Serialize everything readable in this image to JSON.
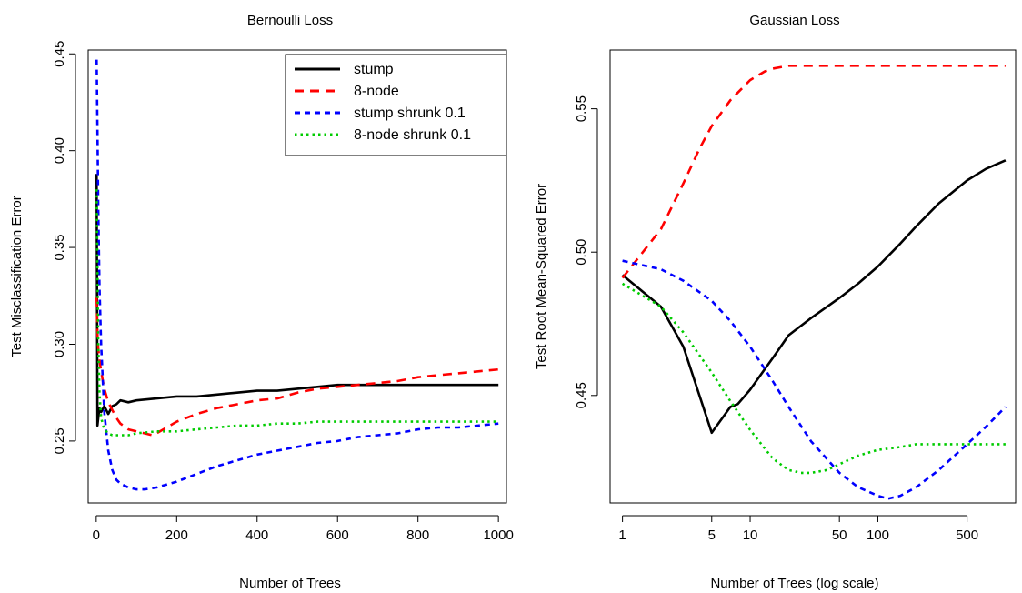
{
  "chart_data": [
    {
      "type": "line",
      "title": "Bernoulli Loss",
      "xlabel": "Number of Trees",
      "ylabel": "Test Misclassification Error",
      "xlim": [
        -20,
        1020
      ],
      "ylim": [
        0.218,
        0.452
      ],
      "xticks": [
        0,
        200,
        400,
        600,
        800,
        1000
      ],
      "yticks": [
        0.25,
        0.3,
        0.35,
        0.4,
        0.45
      ],
      "xtick_labels": [
        "0",
        "200",
        "400",
        "600",
        "800",
        "1000"
      ],
      "ytick_labels": [
        "0.25",
        "0.30",
        "0.35",
        "0.40",
        "0.45"
      ],
      "legend_position": "top-right",
      "series": [
        {
          "name": "stump",
          "color": "#000000",
          "dash": "solid",
          "width": 2.6,
          "x": [
            1,
            3,
            5,
            8,
            12,
            20,
            30,
            40,
            50,
            60,
            80,
            100,
            150,
            200,
            250,
            300,
            350,
            400,
            450,
            500,
            550,
            600,
            650,
            700,
            750,
            800,
            850,
            900,
            950,
            1000
          ],
          "y": [
            0.388,
            0.258,
            0.262,
            0.267,
            0.265,
            0.268,
            0.264,
            0.268,
            0.269,
            0.271,
            0.27,
            0.271,
            0.272,
            0.273,
            0.273,
            0.274,
            0.275,
            0.276,
            0.276,
            0.277,
            0.278,
            0.279,
            0.279,
            0.279,
            0.279,
            0.279,
            0.279,
            0.279,
            0.279,
            0.279
          ]
        },
        {
          "name": "8-node",
          "color": "#ff0000",
          "dash": "10 7",
          "width": 2.6,
          "x": [
            1,
            3,
            5,
            8,
            12,
            20,
            30,
            40,
            50,
            60,
            80,
            100,
            120,
            140,
            150,
            200,
            250,
            300,
            350,
            400,
            450,
            500,
            550,
            600,
            650,
            700,
            750,
            800,
            850,
            900,
            950,
            1000
          ],
          "y": [
            0.324,
            0.305,
            0.298,
            0.292,
            0.286,
            0.277,
            0.27,
            0.266,
            0.262,
            0.259,
            0.256,
            0.255,
            0.254,
            0.253,
            0.254,
            0.26,
            0.264,
            0.267,
            0.269,
            0.271,
            0.272,
            0.275,
            0.277,
            0.278,
            0.279,
            0.28,
            0.281,
            0.283,
            0.284,
            0.285,
            0.286,
            0.287
          ]
        },
        {
          "name": "stump shrunk 0.1",
          "color": "#0000ff",
          "dash": "6 5",
          "width": 2.6,
          "x": [
            1,
            3,
            5,
            8,
            12,
            20,
            30,
            40,
            50,
            60,
            80,
            100,
            120,
            150,
            200,
            250,
            300,
            350,
            400,
            450,
            500,
            550,
            600,
            650,
            700,
            750,
            800,
            850,
            900,
            950,
            1000
          ],
          "y": [
            0.447,
            0.41,
            0.37,
            0.33,
            0.3,
            0.265,
            0.245,
            0.235,
            0.23,
            0.228,
            0.226,
            0.225,
            0.225,
            0.226,
            0.229,
            0.233,
            0.237,
            0.24,
            0.243,
            0.245,
            0.247,
            0.249,
            0.25,
            0.252,
            0.253,
            0.254,
            0.256,
            0.257,
            0.257,
            0.258,
            0.259
          ]
        },
        {
          "name": "8-node shrunk 0.1",
          "color": "#00cc00",
          "dash": "2.5 4",
          "width": 2.6,
          "x": [
            1,
            3,
            5,
            8,
            12,
            20,
            30,
            40,
            50,
            60,
            80,
            100,
            150,
            200,
            250,
            300,
            350,
            400,
            450,
            500,
            550,
            600,
            650,
            700,
            750,
            800,
            850,
            900,
            950,
            1000
          ],
          "y": [
            0.38,
            0.34,
            0.3,
            0.275,
            0.262,
            0.256,
            0.254,
            0.253,
            0.253,
            0.253,
            0.253,
            0.254,
            0.255,
            0.255,
            0.256,
            0.257,
            0.258,
            0.258,
            0.259,
            0.259,
            0.26,
            0.26,
            0.26,
            0.26,
            0.26,
            0.26,
            0.26,
            0.26,
            0.26,
            0.26
          ]
        }
      ]
    },
    {
      "type": "line",
      "title": "Gaussian Loss",
      "xlabel": "Number of Trees (log scale)",
      "ylabel": "Test Root Mean-Squared Error",
      "xscale": "log",
      "xlim": [
        0.8,
        1200
      ],
      "ylim": [
        0.4125,
        0.5705
      ],
      "xticks": [
        1,
        5,
        10,
        50,
        100,
        500
      ],
      "yticks": [
        0.45,
        0.5,
        0.55
      ],
      "xtick_labels": [
        "1",
        "5",
        "10",
        "50",
        "100",
        "500"
      ],
      "ytick_labels": [
        "0.45",
        "0.50",
        "0.55"
      ],
      "series": [
        {
          "name": "stump",
          "color": "#000000",
          "dash": "solid",
          "width": 2.6,
          "x": [
            1,
            2,
            3,
            5,
            7,
            8,
            10,
            12,
            15,
            20,
            30,
            50,
            70,
            100,
            150,
            200,
            300,
            500,
            700,
            1000
          ],
          "y": [
            0.492,
            0.481,
            0.467,
            0.437,
            0.446,
            0.447,
            0.452,
            0.457,
            0.463,
            0.471,
            0.477,
            0.484,
            0.489,
            0.495,
            0.503,
            0.509,
            0.517,
            0.525,
            0.529,
            0.532
          ]
        },
        {
          "name": "8-node",
          "color": "#ff0000",
          "dash": "10 7",
          "width": 2.6,
          "x": [
            1,
            2,
            3,
            4,
            5,
            7,
            10,
            13,
            15,
            20,
            30,
            50,
            100,
            200,
            500,
            1000
          ],
          "y": [
            0.491,
            0.508,
            0.524,
            0.536,
            0.544,
            0.553,
            0.56,
            0.563,
            0.564,
            0.565,
            0.565,
            0.565,
            0.565,
            0.565,
            0.565,
            0.565
          ]
        },
        {
          "name": "stump shrunk 0.1",
          "color": "#0000ff",
          "dash": "6 5",
          "width": 2.6,
          "x": [
            1,
            2,
            3,
            5,
            7,
            10,
            15,
            20,
            30,
            50,
            70,
            100,
            120,
            150,
            200,
            300,
            500,
            700,
            1000
          ],
          "y": [
            0.497,
            0.494,
            0.49,
            0.483,
            0.476,
            0.467,
            0.455,
            0.446,
            0.434,
            0.423,
            0.418,
            0.415,
            0.414,
            0.415,
            0.418,
            0.424,
            0.433,
            0.439,
            0.446
          ]
        },
        {
          "name": "8-node shrunk 0.1",
          "color": "#00cc00",
          "dash": "2.5 4",
          "width": 2.6,
          "x": [
            1,
            2,
            3,
            5,
            7,
            10,
            15,
            20,
            25,
            30,
            40,
            50,
            70,
            100,
            150,
            200,
            300,
            500,
            1000
          ],
          "y": [
            0.489,
            0.481,
            0.472,
            0.458,
            0.448,
            0.438,
            0.428,
            0.424,
            0.423,
            0.423,
            0.424,
            0.426,
            0.429,
            0.431,
            0.432,
            0.433,
            0.433,
            0.433,
            0.433
          ]
        }
      ]
    }
  ]
}
